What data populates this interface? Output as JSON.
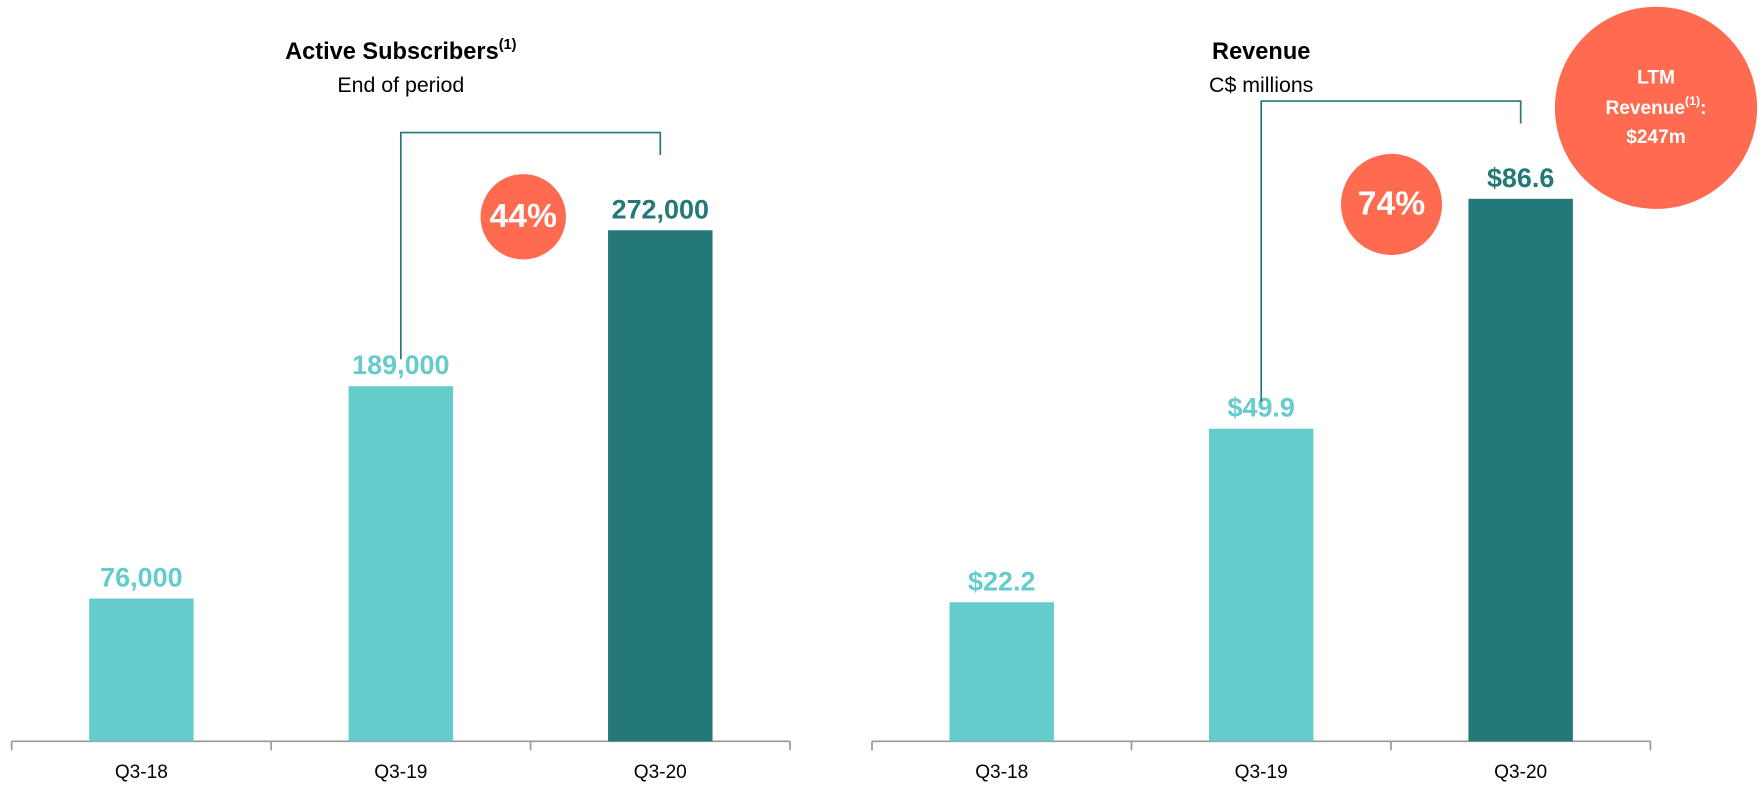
{
  "chart_data": [
    {
      "type": "bar",
      "title": "Active Subscribers",
      "title_superscript": "(1)",
      "subtitle": "End of period",
      "categories": [
        "Q3-18",
        "Q3-19",
        "Q3-20"
      ],
      "values": [
        76000,
        189000,
        272000
      ],
      "value_labels": [
        "76,000",
        "189,000",
        "272,000"
      ],
      "colors": [
        "#66cbcb",
        "#66cbcb",
        "#247878"
      ],
      "growth_label": "44%"
    },
    {
      "type": "bar",
      "title": "Revenue",
      "subtitle": "C$ millions",
      "categories": [
        "Q3-18",
        "Q3-19",
        "Q3-20"
      ],
      "values": [
        22.2,
        49.9,
        86.6
      ],
      "value_labels": [
        "$22.2",
        "$49.9",
        "$86.6"
      ],
      "colors": [
        "#66cbcb",
        "#66cbcb",
        "#247878"
      ],
      "growth_label": "74%",
      "callout": {
        "line1": "LTM",
        "line2": "Revenue",
        "superscript": "(1)",
        "line2_end": ":",
        "line3": "$247m"
      }
    }
  ]
}
